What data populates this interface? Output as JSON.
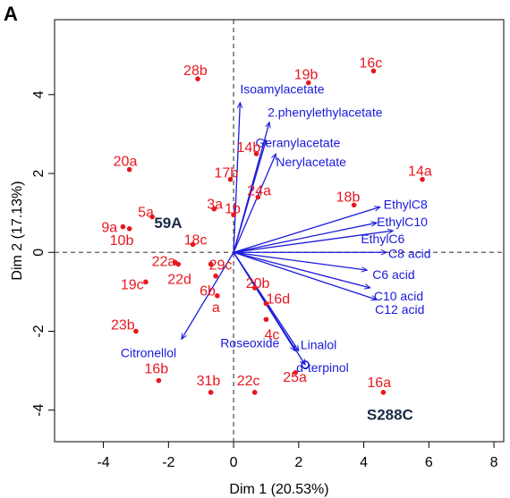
{
  "chart_data": {
    "type": "scatter",
    "panel_label": "A",
    "xlabel": "Dim 1 (20.53%)",
    "ylabel": "Dim 2 (17.13%)",
    "xlim": [
      -5.5,
      8.3
    ],
    "ylim": [
      -4.8,
      5.9
    ],
    "xticks": [
      -4,
      -2,
      0,
      2,
      4,
      6,
      8
    ],
    "yticks": [
      -4,
      -2,
      0,
      2,
      4
    ],
    "colors": {
      "points": "#e8171f",
      "vectors": "#1a1adb",
      "strains": "#1b2a44",
      "ref_lines": "#555555"
    },
    "points": [
      {
        "label": "28b",
        "x": -1.1,
        "y": 4.4
      },
      {
        "label": "19b",
        "x": 2.3,
        "y": 4.3
      },
      {
        "label": "16c",
        "x": 4.3,
        "y": 4.6
      },
      {
        "label": "20a",
        "x": -3.2,
        "y": 2.1
      },
      {
        "label": "14a",
        "x": 5.8,
        "y": 1.85
      },
      {
        "label": "14b",
        "x": 0.7,
        "y": 2.5
      },
      {
        "label": "17b",
        "x": -0.1,
        "y": 1.85
      },
      {
        "label": "24a",
        "x": 0.75,
        "y": 1.4
      },
      {
        "label": "18b",
        "x": 3.7,
        "y": 1.2
      },
      {
        "label": "3a",
        "x": -0.6,
        "y": 1.1
      },
      {
        "label": "1b",
        "x": 0.0,
        "y": 0.95
      },
      {
        "label": "5a",
        "x": -2.5,
        "y": 0.9
      },
      {
        "label": "9a",
        "x": -3.4,
        "y": 0.65
      },
      {
        "label": "10b",
        "x": -3.2,
        "y": 0.6
      },
      {
        "label": "18c",
        "x": -1.25,
        "y": 0.2
      },
      {
        "label": "22a",
        "x": -1.8,
        "y": -0.25
      },
      {
        "label": "29c",
        "x": -0.7,
        "y": -0.3
      },
      {
        "label": "19c",
        "x": -2.7,
        "y": -0.75
      },
      {
        "label": "22d",
        "x": -1.7,
        "y": -0.3
      },
      {
        "label": "6b",
        "x": -0.55,
        "y": -0.6
      },
      {
        "label": "a",
        "x": -0.5,
        "y": -1.1
      },
      {
        "label": "20b",
        "x": 0.65,
        "y": -0.9
      },
      {
        "label": "16d",
        "x": 1.0,
        "y": -1.3
      },
      {
        "label": "4c",
        "x": 1.0,
        "y": -1.7
      },
      {
        "label": "23b",
        "x": -3.0,
        "y": -2.0
      },
      {
        "label": "16b",
        "x": -2.3,
        "y": -3.25
      },
      {
        "label": "31b",
        "x": -0.7,
        "y": -3.55
      },
      {
        "label": "22c",
        "x": 0.65,
        "y": -3.55
      },
      {
        "label": "25a",
        "x": 1.9,
        "y": -3.05
      },
      {
        "label": "16a",
        "x": 4.6,
        "y": -3.55
      }
    ],
    "vectors": [
      {
        "label": "Isoamylacetate",
        "x": 0.2,
        "y": 3.8
      },
      {
        "label": "2.phenylethylacetate",
        "x": 1.1,
        "y": 3.3
      },
      {
        "label": "Geranylacetate",
        "x": 1.0,
        "y": 2.85
      },
      {
        "label": "Nerylacetate",
        "x": 1.3,
        "y": 2.5
      },
      {
        "label": "EthylC8",
        "x": 4.5,
        "y": 1.15
      },
      {
        "label": "EthylC10",
        "x": 4.4,
        "y": 0.75
      },
      {
        "label": "EthylC6",
        "x": 4.9,
        "y": 0.55
      },
      {
        "label": "C8 acid",
        "x": 4.7,
        "y": 0.0
      },
      {
        "label": "C6 acid",
        "x": 4.1,
        "y": -0.45
      },
      {
        "label": "C10 acid",
        "x": 4.2,
        "y": -0.9
      },
      {
        "label": "C12 acid",
        "x": 4.4,
        "y": -1.2
      },
      {
        "label": "Citronellol",
        "x": -1.6,
        "y": -2.2
      },
      {
        "label": "Linalol",
        "x": 2.0,
        "y": -2.5
      },
      {
        "label": "Roseoxide",
        "x": 1.9,
        "y": -2.5
      },
      {
        "label": "α-terpinol",
        "x": 2.2,
        "y": -2.85
      }
    ],
    "strains": [
      {
        "label": "59A",
        "x": -2.0,
        "y": 0.75
      },
      {
        "label": "S288C",
        "x": 4.75,
        "y": -3.65
      }
    ]
  }
}
